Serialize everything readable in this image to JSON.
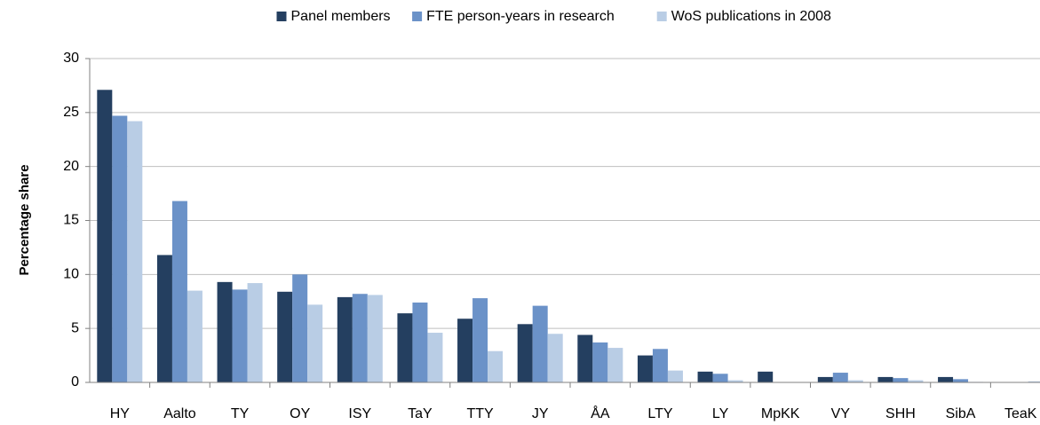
{
  "chart_data": {
    "type": "bar",
    "y_label": "Percentage share",
    "categories": [
      "HY",
      "Aalto",
      "TY",
      "OY",
      "ISY",
      "TaY",
      "TTY",
      "JY",
      "ÅA",
      "LTY",
      "LY",
      "MpKK",
      "VY",
      "SHH",
      "SibA",
      "TeaK"
    ],
    "series": [
      {
        "name": "Panel members",
        "color": "#243f60",
        "values": [
          27.1,
          11.8,
          9.3,
          8.4,
          7.9,
          6.4,
          5.9,
          5.4,
          4.4,
          2.5,
          1.0,
          1.0,
          0.5,
          0.5,
          0.5,
          0
        ]
      },
      {
        "name": "FTE person-years in research",
        "color": "#6b92c8",
        "values": [
          24.7,
          16.8,
          8.6,
          10.0,
          8.2,
          7.4,
          7.8,
          7.1,
          3.7,
          3.1,
          0.8,
          0,
          0.9,
          0.4,
          0.3,
          0
        ]
      },
      {
        "name": "WoS publications in 2008",
        "color": "#b9cde5",
        "values": [
          24.2,
          8.5,
          9.2,
          7.2,
          8.1,
          4.6,
          2.9,
          4.5,
          3.2,
          1.1,
          0.2,
          0,
          0.2,
          0.2,
          0.05,
          0.1
        ]
      }
    ],
    "ylim": [
      0,
      30
    ],
    "yticks": [
      0,
      5,
      10,
      15,
      20,
      25,
      30
    ],
    "grid": true,
    "legend": "top"
  }
}
